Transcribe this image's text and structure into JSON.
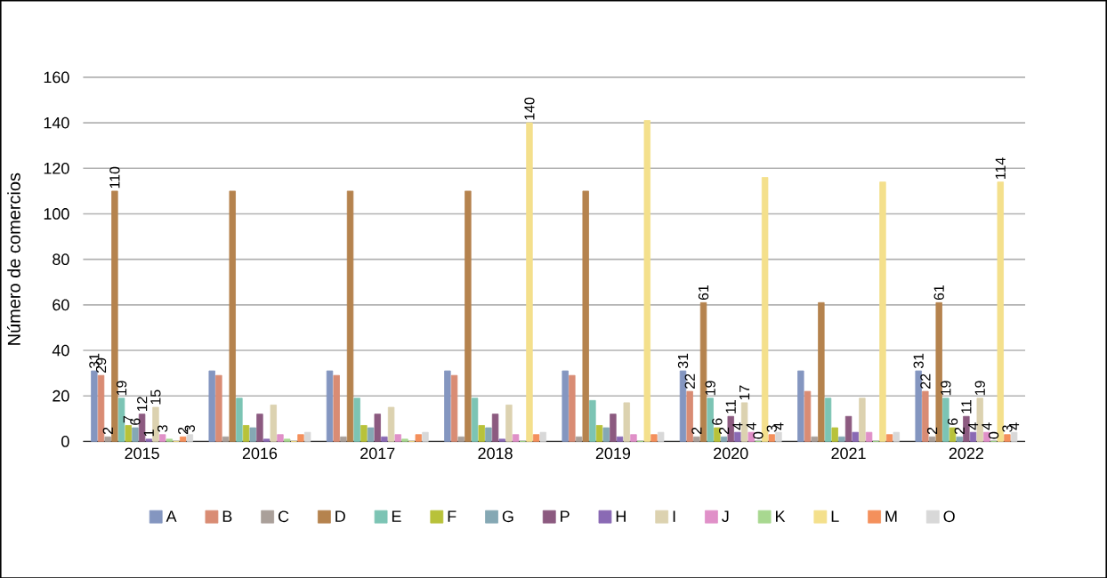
{
  "chart_data": {
    "type": "bar",
    "ylabel": "Número de comercios",
    "categories": [
      "2015",
      "2016",
      "2017",
      "2018",
      "2019",
      "2020",
      "2021",
      "2022"
    ],
    "ylim": [
      0,
      160
    ],
    "yticks": [
      0,
      20,
      40,
      60,
      80,
      100,
      120,
      140,
      160
    ],
    "grid": "y",
    "legend": "bottom",
    "series": [
      {
        "name": "A",
        "color": "#8496c0",
        "values": [
          31,
          31,
          31,
          31,
          31,
          31,
          31,
          31
        ],
        "value_labels": [
          "31",
          null,
          null,
          null,
          null,
          "31",
          null,
          "31"
        ]
      },
      {
        "name": "B",
        "color": "#d98c74",
        "values": [
          29,
          29,
          29,
          29,
          29,
          22,
          22,
          22
        ],
        "value_labels": [
          "29",
          null,
          null,
          null,
          null,
          "22",
          null,
          "22"
        ]
      },
      {
        "name": "C",
        "color": "#aaa09a",
        "values": [
          2,
          2,
          2,
          2,
          2,
          2,
          2,
          2
        ],
        "value_labels": [
          "2",
          null,
          null,
          null,
          null,
          "2",
          null,
          "2"
        ]
      },
      {
        "name": "D",
        "color": "#b5834e",
        "values": [
          110,
          110,
          110,
          110,
          110,
          61,
          61,
          61
        ],
        "value_labels": [
          "110",
          null,
          null,
          null,
          null,
          "61",
          null,
          "61"
        ]
      },
      {
        "name": "E",
        "color": "#7cc4b4",
        "values": [
          19,
          19,
          19,
          19,
          18,
          19,
          19,
          19
        ],
        "value_labels": [
          "19",
          null,
          null,
          null,
          null,
          "19",
          null,
          "19"
        ]
      },
      {
        "name": "F",
        "color": "#b8c23a",
        "values": [
          7,
          7,
          7,
          7,
          7,
          6,
          6,
          6
        ],
        "value_labels": [
          "7",
          null,
          null,
          null,
          null,
          "6",
          null,
          "6"
        ]
      },
      {
        "name": "G",
        "color": "#85a8b4",
        "values": [
          6,
          6,
          6,
          6,
          6,
          2,
          2,
          2
        ],
        "value_labels": [
          "6",
          null,
          null,
          null,
          null,
          "2",
          null,
          "2"
        ]
      },
      {
        "name": "P",
        "color": "#8c5a80",
        "values": [
          12,
          12,
          12,
          12,
          12,
          11,
          11,
          11
        ],
        "value_labels": [
          "12",
          null,
          null,
          null,
          null,
          "11",
          null,
          "11"
        ]
      },
      {
        "name": "H",
        "color": "#8a6ab4",
        "values": [
          1,
          1,
          2,
          1,
          2,
          4,
          4,
          4
        ],
        "value_labels": [
          "1",
          null,
          null,
          null,
          null,
          "4",
          null,
          "4"
        ]
      },
      {
        "name": "I",
        "color": "#dcd2b0",
        "values": [
          15,
          16,
          15,
          16,
          17,
          17,
          19,
          19
        ],
        "value_labels": [
          "15",
          null,
          null,
          null,
          null,
          "17",
          null,
          "19"
        ]
      },
      {
        "name": "J",
        "color": "#e090c8",
        "values": [
          3,
          3,
          3,
          3,
          3,
          4,
          4,
          4
        ],
        "value_labels": [
          "3",
          null,
          null,
          null,
          null,
          "4",
          null,
          "4"
        ]
      },
      {
        "name": "K",
        "color": "#a8d890",
        "values": [
          1,
          1,
          1,
          0,
          0,
          0,
          0,
          0
        ],
        "value_labels": [
          null,
          null,
          null,
          null,
          null,
          "0",
          null,
          "0"
        ]
      },
      {
        "name": "L",
        "color": "#f4e08c",
        "values": [
          0,
          0,
          0,
          140,
          141,
          116,
          114,
          114
        ],
        "value_labels": [
          null,
          null,
          null,
          "140",
          null,
          null,
          null,
          "114"
        ]
      },
      {
        "name": "M",
        "color": "#f4905c",
        "values": [
          2,
          3,
          3,
          3,
          3,
          3,
          3,
          3
        ],
        "value_labels": [
          "2",
          null,
          null,
          null,
          null,
          "3",
          null,
          "3"
        ]
      },
      {
        "name": "O",
        "color": "#d8d8d8",
        "values": [
          3,
          4,
          4,
          4,
          4,
          4,
          4,
          4
        ],
        "value_labels": [
          "3",
          null,
          null,
          null,
          null,
          "4",
          null,
          "4"
        ]
      }
    ]
  }
}
